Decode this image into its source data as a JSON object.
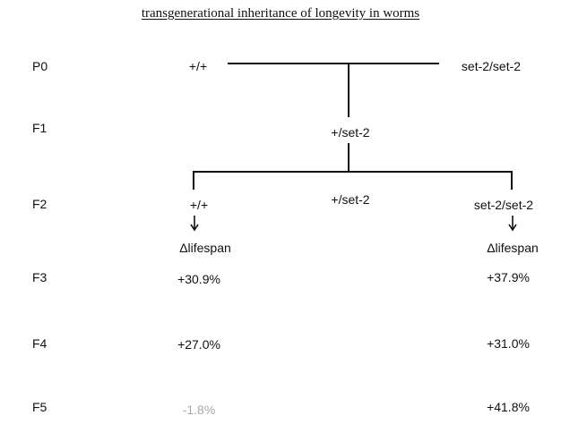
{
  "title": "transgenerational inheritance of longevity in worms",
  "generations": [
    "P0",
    "F1",
    "F2",
    "F3",
    "F4",
    "F5"
  ],
  "p0": {
    "left": "+/+",
    "right": "set-2/set-2"
  },
  "f1": {
    "center": "+/set-2"
  },
  "f2": {
    "left": "+/+",
    "center": "+/set-2",
    "right": "set-2/set-2"
  },
  "lifespan_label": "Δlifespan",
  "wildtype_line": {
    "F3": "+30.9%",
    "F4": "+27.0%",
    "F5": "-1.8%"
  },
  "mutant_line": {
    "F3": "+37.9%",
    "F4": "+31.0%",
    "F5": "+41.8%"
  },
  "colors": {
    "text": "#111111",
    "faded": "#a9a9a9",
    "line": "#111111"
  }
}
